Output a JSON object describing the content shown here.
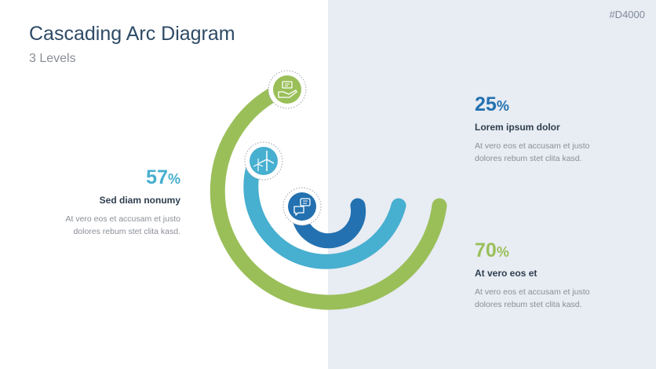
{
  "slide_code": "#D4000",
  "title": "Cascading Arc Diagram",
  "subtitle": "3 Levels",
  "colors": {
    "green": "#9abf59",
    "teal": "#47afcf",
    "blue": "#2371b0",
    "panel": "#e8ecf3"
  },
  "levels": [
    {
      "value": "57",
      "symbol": "%",
      "heading": "Sed diam nonumy",
      "text_line1": "At vero eos et accusam et justo",
      "text_line2": "dolores rebum stet clita kasd.",
      "icon": "wind-turbine-icon",
      "color": "#47afcf"
    },
    {
      "value": "25",
      "symbol": "%",
      "heading": "Lorem ipsum dolor",
      "text_line1": "At vero eos et accusam et justo",
      "text_line2": "dolores rebum stet clita kasd.",
      "icon": "hand-message-icon",
      "color": "#2371b0"
    },
    {
      "value": "70",
      "symbol": "%",
      "heading": "At vero eos et",
      "text_line1": "At vero eos et accusam et justo",
      "text_line2": "dolores rebum stet clita kasd.",
      "icon": "chat-bubbles-icon",
      "color": "#9abf59"
    }
  ]
}
